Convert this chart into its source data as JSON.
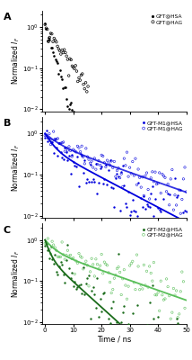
{
  "panels": [
    "A",
    "B",
    "C"
  ],
  "xlabel": "Time / ns",
  "xlim": [
    -1,
    50
  ],
  "legend_A": [
    "GFT@HSA",
    "GFT@HAG"
  ],
  "legend_B": [
    "GFT-M1@HSA",
    "GFT-M1@HAG"
  ],
  "legend_C": [
    "GFT-M2@HSA",
    "GFT-M2@HAG"
  ],
  "color_A_fill": "#000000",
  "color_A_open": "#000000",
  "color_B_fill": "#0000dd",
  "color_B_open": "#0000dd",
  "color_C_fill": "#1a6b1a",
  "color_C_open": "#5abf5a",
  "ylim_A": [
    0.009,
    2.5
  ],
  "ylim_B": [
    0.009,
    2.5
  ],
  "ylim_C": [
    0.009,
    2.5
  ],
  "tcspc_dt": 0.5,
  "t_max_A": 15,
  "t_max_B": 50,
  "t_max_C": 50,
  "tau_A_hsa": 2.0,
  "tau_A_hag": 4.5,
  "tau1_B_hsa": 2.5,
  "tau2_B_hsa": 12.0,
  "a1_B_hsa": 0.55,
  "tau1_B_hag": 4.0,
  "tau2_B_hag": 18.0,
  "a1_B_hag": 0.4,
  "tau1_C_hsa": 1.5,
  "tau2_C_hsa": 7.0,
  "a1_C_hsa": 0.6,
  "tau1_C_hag": 3.0,
  "tau2_C_hag": 18.0,
  "a1_C_hag": 0.45
}
